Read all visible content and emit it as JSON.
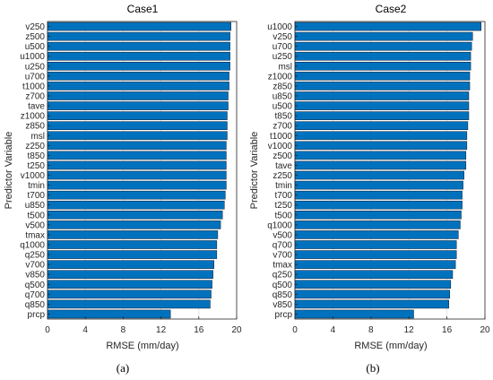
{
  "chart_data": [
    {
      "type": "bar",
      "orientation": "horizontal",
      "title": "Case1",
      "xlabel": "RMSE (mm/day)",
      "ylabel": "Predictor Variable",
      "xlim": [
        0,
        20
      ],
      "xticks": [
        0,
        4,
        8,
        12,
        16,
        20
      ],
      "grid": true,
      "bar_color": "#0072BD",
      "caption": "(a)",
      "categories": [
        "v250",
        "z500",
        "u500",
        "u1000",
        "u250",
        "u700",
        "t1000",
        "z700",
        "tave",
        "z1000",
        "z850",
        "msl",
        "z250",
        "t850",
        "t250",
        "v1000",
        "tmin",
        "t700",
        "u850",
        "t500",
        "v500",
        "tmax",
        "q1000",
        "q250",
        "v700",
        "v850",
        "q500",
        "q700",
        "q850",
        "prcp"
      ],
      "values": [
        19.4,
        19.3,
        19.3,
        19.3,
        19.3,
        19.2,
        19.2,
        19.1,
        19.1,
        19.0,
        19.0,
        19.0,
        18.9,
        18.9,
        18.9,
        18.9,
        18.9,
        18.8,
        18.7,
        18.5,
        18.3,
        18.0,
        17.9,
        17.9,
        17.6,
        17.5,
        17.4,
        17.3,
        17.2,
        13.0
      ]
    },
    {
      "type": "bar",
      "orientation": "horizontal",
      "title": "Case2",
      "xlabel": "RMSE (mm/day)",
      "ylabel": "Predictor Variable",
      "xlim": [
        0,
        20
      ],
      "xticks": [
        0,
        4,
        8,
        12,
        16,
        20
      ],
      "grid": true,
      "bar_color": "#0072BD",
      "caption": "(b)",
      "categories": [
        "u1000",
        "v250",
        "u700",
        "u250",
        "msl",
        "z1000",
        "z850",
        "u850",
        "u500",
        "t850",
        "z700",
        "t1000",
        "v1000",
        "z500",
        "tave",
        "z250",
        "tmin",
        "t700",
        "t250",
        "t500",
        "q1000",
        "v500",
        "q700",
        "v700",
        "tmax",
        "q250",
        "q500",
        "q850",
        "v850",
        "prcp"
      ],
      "values": [
        19.6,
        18.7,
        18.6,
        18.5,
        18.5,
        18.4,
        18.4,
        18.3,
        18.3,
        18.3,
        18.2,
        18.1,
        18.1,
        18.0,
        18.0,
        17.8,
        17.7,
        17.6,
        17.6,
        17.5,
        17.4,
        17.2,
        17.0,
        17.0,
        16.9,
        16.6,
        16.4,
        16.3,
        16.2,
        12.5
      ]
    }
  ]
}
